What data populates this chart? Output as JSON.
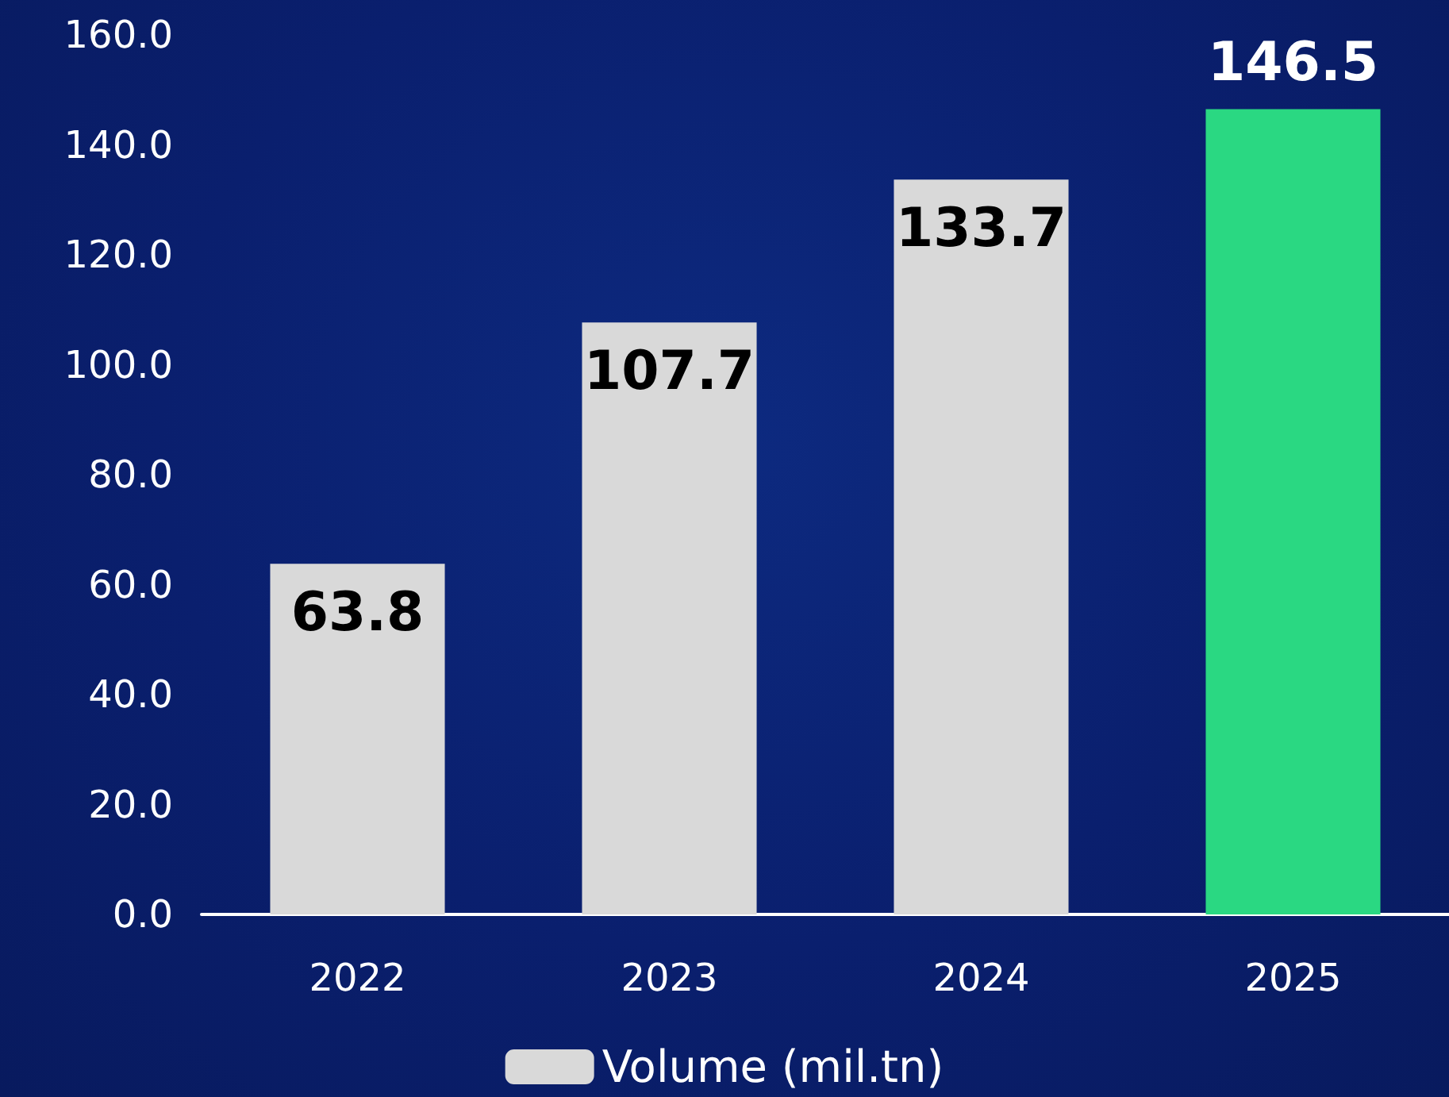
{
  "chart_data": {
    "type": "bar",
    "categories": [
      "2022",
      "2023",
      "2024",
      "2025"
    ],
    "series": [
      {
        "name": "Volume (mil.tn)",
        "color": "#d9d9d9",
        "colors": [
          "#d9d9d9",
          "#d9d9d9",
          "#d9d9d9",
          "#2ad882"
        ],
        "values": [
          63.8,
          107.7,
          133.7,
          146.5
        ]
      }
    ],
    "ylim": [
      0,
      160
    ],
    "yticks": [
      {
        "value": 0,
        "label": "0.0"
      },
      {
        "value": 20,
        "label": "20.0"
      },
      {
        "value": 40,
        "label": "40.0"
      },
      {
        "value": 60,
        "label": "60.0"
      },
      {
        "value": 80,
        "label": "80.0"
      },
      {
        "value": 100,
        "label": "100.0"
      },
      {
        "value": 120,
        "label": "120.0"
      },
      {
        "value": 140,
        "label": "140.0"
      },
      {
        "value": 160,
        "label": "160.0"
      }
    ],
    "grid": false,
    "legend": "bottom",
    "data_labels": true
  }
}
